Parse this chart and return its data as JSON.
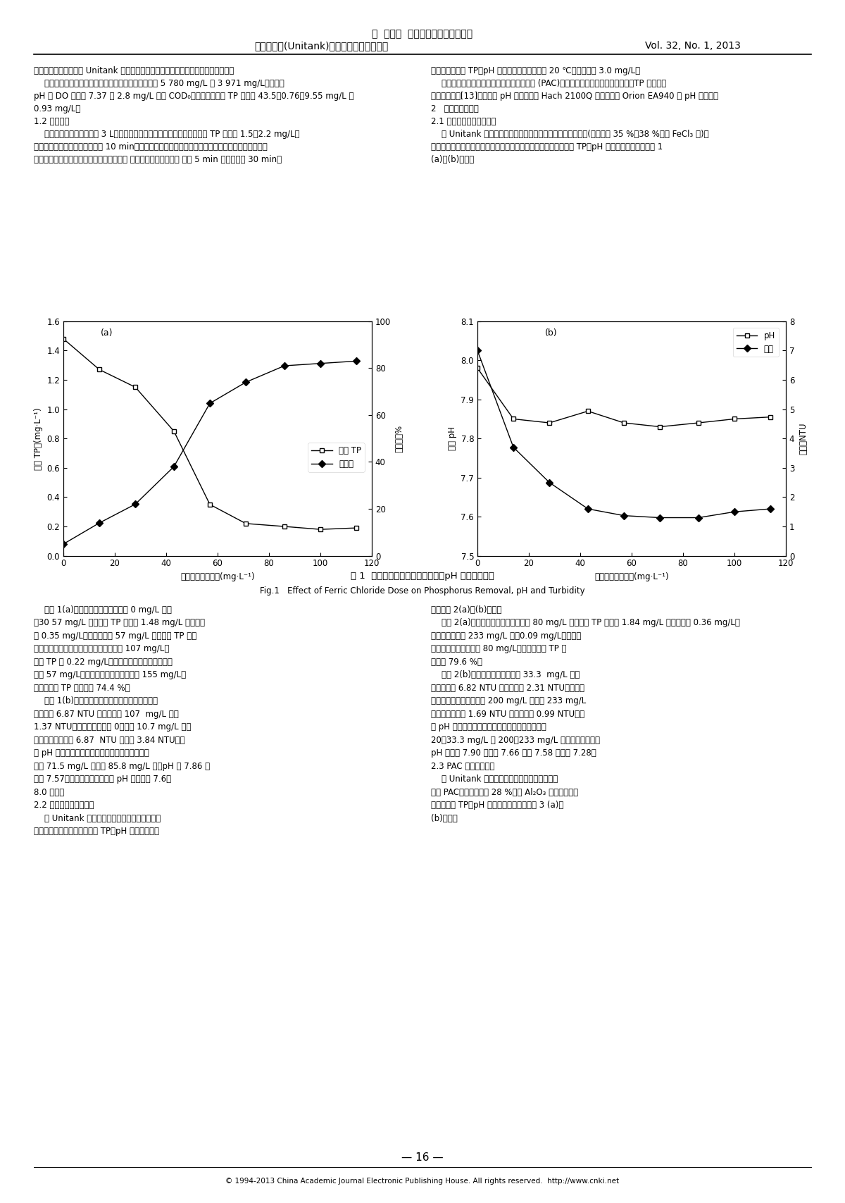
{
  "page_title_line1": "童  飞，周  振，陈思维，等．一体化",
  "page_title_line2": "活性污泥法(Unitank)工艺同步加药除磷试验",
  "page_title_right": "Vol. 32, No. 1, 2013",
  "subplot_a": {
    "label": "(a)",
    "xlabel": "三氯化铁投药量／(mg·L⁻¹)",
    "ylabel_left": "出水 TP／(mg·L⁻¹)",
    "ylabel_right": "去除率／%",
    "xlim": [
      0,
      120
    ],
    "ylim_left": [
      0.0,
      1.6
    ],
    "ylim_right": [
      0,
      100
    ],
    "yticks_left": [
      0.0,
      0.2,
      0.4,
      0.6,
      0.8,
      1.0,
      1.2,
      1.4,
      1.6
    ],
    "yticks_right": [
      0,
      20,
      40,
      60,
      80,
      100
    ],
    "xticks": [
      0,
      20,
      40,
      60,
      80,
      100,
      120
    ],
    "tp_x": [
      0,
      14,
      28,
      43,
      57,
      71,
      86,
      100,
      114
    ],
    "tp_y": [
      1.48,
      1.27,
      1.15,
      0.85,
      0.35,
      0.22,
      0.2,
      0.18,
      0.19
    ],
    "removal_x": [
      0,
      14,
      28,
      43,
      57,
      71,
      86,
      100,
      114
    ],
    "removal_y": [
      5,
      14,
      22,
      38,
      65,
      74,
      81,
      82,
      83
    ],
    "legend_tp": "出水 TP",
    "legend_removal": "去除率"
  },
  "subplot_b": {
    "label": "(b)",
    "xlabel": "三氯化铁投药量／(mg·L⁻¹)",
    "ylabel_left": "出水 pH",
    "ylabel_right": "浊度／NTU",
    "xlim": [
      0,
      120
    ],
    "ylim_left": [
      7.5,
      8.1
    ],
    "ylim_right": [
      0,
      8
    ],
    "yticks_left": [
      7.5,
      7.6,
      7.7,
      7.8,
      7.9,
      8.0,
      8.1
    ],
    "yticks_right": [
      0,
      1,
      2,
      3,
      4,
      5,
      6,
      7,
      8
    ],
    "xticks": [
      0,
      20,
      40,
      60,
      80,
      100,
      120
    ],
    "ph_x": [
      0,
      14,
      28,
      43,
      57,
      71,
      86,
      100,
      114
    ],
    "ph_y": [
      7.98,
      7.85,
      7.84,
      7.87,
      7.84,
      7.83,
      7.84,
      7.85,
      7.855
    ],
    "turbidity_x": [
      0,
      14,
      28,
      43,
      57,
      71,
      86,
      100,
      114
    ],
    "turbidity_y": [
      7.0,
      3.7,
      2.5,
      1.6,
      1.37,
      1.3,
      1.3,
      1.5,
      1.6
    ],
    "legend_ph": "pH",
    "legend_turbidity": "浊度"
  },
  "fig_caption_cn": "图 1  三氯化铁投药量对除磷效果、pH 及浊度的影响",
  "fig_caption_en": "Fig.1   Effect of Ferric Chloride Dose on Phosphorus Removal, pH and Turbidity",
  "page_number": "— 16 —",
  "footer": "© 1994-2013 China Academic Journal Electronic Publishing House. All rights reserved.  http://www.cnki.net",
  "background_color": "#ffffff"
}
